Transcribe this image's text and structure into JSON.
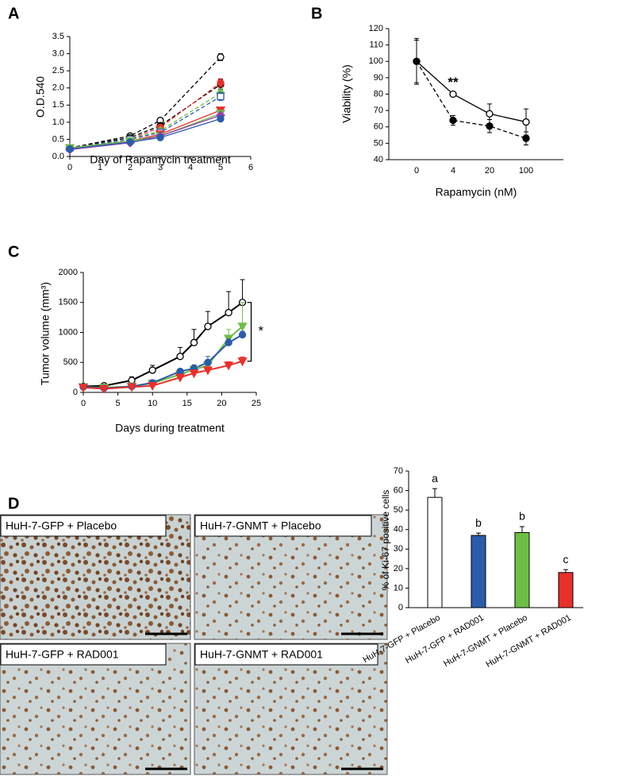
{
  "chart_data": [
    {
      "panel": "A",
      "type": "line",
      "x_label": "Day of Rapamycin treatment",
      "y_label": "O.D.540",
      "x": [
        0,
        2,
        3,
        5
      ],
      "xlim": [
        0,
        6
      ],
      "xticks": [
        0,
        1,
        2,
        3,
        4,
        5,
        6
      ],
      "ylim": [
        0,
        3.5
      ],
      "yticks": [
        {
          "value": 0,
          "label": "0.0"
        },
        {
          "value": 0.5,
          "label": "0.5"
        },
        {
          "value": 1,
          "label": "1.0"
        },
        {
          "value": 1.5,
          "label": "1.5"
        },
        {
          "value": 2,
          "label": "2.0"
        },
        {
          "value": 2.5,
          "label": "2.5"
        },
        {
          "value": 3,
          "label": "3.0"
        },
        {
          "value": 3.5,
          "label": "3.5"
        }
      ],
      "error_direction": "both",
      "series": [
        {
          "color": "#000000",
          "dash": true,
          "marker": "circle-open",
          "values": [
            0.25,
            0.6,
            1.05,
            2.9
          ],
          "errors": [
            0.02,
            0.05,
            0.05,
            0.1
          ]
        },
        {
          "color": "#000000",
          "dash": true,
          "marker": "circle",
          "values": [
            0.25,
            0.55,
            0.9,
            2.1
          ],
          "errors": [
            0.02,
            0.05,
            0.05,
            0.15
          ]
        },
        {
          "color": "#e8302a",
          "dash": true,
          "marker": "circle",
          "values": [
            0.25,
            0.5,
            0.85,
            2.15
          ],
          "errors": [
            0.02,
            0.05,
            0.05,
            0.12
          ]
        },
        {
          "color": "#6cbf45",
          "dash": true,
          "marker": "diamond",
          "values": [
            0.25,
            0.5,
            0.75,
            1.85
          ],
          "errors": [
            0.02,
            0.05,
            0.05,
            0.12
          ]
        },
        {
          "color": "#2a5caa",
          "dash": true,
          "marker": "square-open",
          "values": [
            0.25,
            0.5,
            0.7,
            1.75
          ],
          "errors": [
            0.02,
            0.05,
            0.05,
            0.12
          ]
        },
        {
          "color": "#e8302a",
          "dash": false,
          "marker": "triangle-down",
          "values": [
            0.25,
            0.45,
            0.65,
            1.35
          ],
          "errors": [
            0.02,
            0.04,
            0.04,
            0.08
          ]
        },
        {
          "color": "#6cbf45",
          "dash": false,
          "marker": "triangle-down",
          "values": [
            0.25,
            0.45,
            0.6,
            1.25
          ],
          "errors": [
            0.02,
            0.04,
            0.04,
            0.08
          ]
        },
        {
          "color": "#9b3fb5",
          "dash": false,
          "marker": "diamond",
          "values": [
            0.2,
            0.4,
            0.6,
            1.2
          ],
          "errors": [
            0.02,
            0.04,
            0.04,
            0.06
          ]
        },
        {
          "color": "#2a5caa",
          "dash": false,
          "marker": "circle",
          "values": [
            0.22,
            0.42,
            0.55,
            1.1
          ],
          "errors": [
            0.02,
            0.04,
            0.04,
            0.06
          ]
        }
      ]
    },
    {
      "panel": "B",
      "type": "line",
      "x_label": "Rapamycin (nM)",
      "y_label": "Viability (%)",
      "categories": [
        "0",
        "4",
        "20",
        "100"
      ],
      "ylim": [
        40,
        120
      ],
      "yticks": [
        40,
        50,
        60,
        70,
        80,
        90,
        100,
        110,
        120
      ],
      "error_direction": "both",
      "significance": [
        null,
        "**",
        null,
        null
      ],
      "series": [
        {
          "color": "#000000",
          "dash": false,
          "marker": "circle-open",
          "values": [
            100,
            80,
            68,
            63
          ],
          "errors": [
            14,
            1,
            6,
            8
          ]
        },
        {
          "color": "#000000",
          "dash": true,
          "marker": "circle",
          "values": [
            100,
            64,
            60.5,
            53
          ],
          "errors": [
            13,
            3,
            4,
            4
          ]
        }
      ]
    },
    {
      "panel": "C",
      "type": "line",
      "x_label": "Days during treatment",
      "y_label": "Tumor volume (mm³)",
      "x": [
        0,
        3,
        7,
        10,
        14,
        16,
        18,
        21,
        23
      ],
      "xlim": [
        0,
        25
      ],
      "xticks": [
        0,
        5,
        10,
        15,
        20,
        25
      ],
      "ylim": [
        0,
        2000
      ],
      "yticks": [
        0,
        500,
        1000,
        1500,
        2000
      ],
      "error_direction": "up",
      "significance_label": "*",
      "series": [
        {
          "color": "#000000",
          "dash": false,
          "marker": "circle-open",
          "values": [
            100,
            110,
            200,
            370,
            600,
            830,
            1100,
            1330,
            1500
          ],
          "errors": [
            10,
            20,
            60,
            80,
            150,
            220,
            250,
            350,
            380
          ]
        },
        {
          "color": "#6cbf45",
          "dash": false,
          "marker": "triangle-down",
          "values": [
            90,
            80,
            100,
            150,
            300,
            380,
            450,
            900,
            1100
          ],
          "errors": [
            10,
            10,
            20,
            30,
            50,
            60,
            80,
            150,
            400
          ]
        },
        {
          "color": "#2a5caa",
          "dash": false,
          "marker": "circle",
          "values": [
            90,
            70,
            100,
            160,
            350,
            400,
            500,
            830,
            960
          ],
          "errors": [
            10,
            10,
            20,
            30,
            40,
            60,
            100,
            60,
            60
          ]
        },
        {
          "color": "#e8302a",
          "dash": false,
          "marker": "triangle-down",
          "values": [
            80,
            60,
            90,
            110,
            250,
            320,
            370,
            450,
            520
          ],
          "errors": [
            10,
            10,
            10,
            20,
            30,
            40,
            40,
            60,
            70
          ]
        }
      ]
    },
    {
      "panel": "D",
      "type": "bar",
      "y_label": "% of Ki-67 positive cells",
      "categories": [
        "HuH-7-GFP + Placebo",
        "HuH-7-GFP + RAD001",
        "HuH-7-GNMT + Placebo",
        "HuH-7-GNMT + RAD001"
      ],
      "values": [
        56.5,
        37,
        38.5,
        18
      ],
      "errors": [
        4.5,
        1.2,
        3,
        1.5
      ],
      "colors": [
        "#ffffff",
        "#2a5caa",
        "#6cbf45",
        "#e8302a"
      ],
      "group_labels": [
        "a",
        "b",
        "b",
        "c"
      ],
      "error_direction": "up",
      "ylim": [
        0,
        70
      ],
      "yticks": [
        0,
        10,
        20,
        30,
        40,
        50,
        60,
        70
      ]
    }
  ],
  "images": [
    {
      "caption": "HuH-7-GFP + Placebo"
    },
    {
      "caption": "HuH-7-GNMT + Placebo"
    },
    {
      "caption": "HuH-7-GFP + RAD001"
    },
    {
      "caption": "HuH-7-GNMT + RAD001"
    }
  ]
}
